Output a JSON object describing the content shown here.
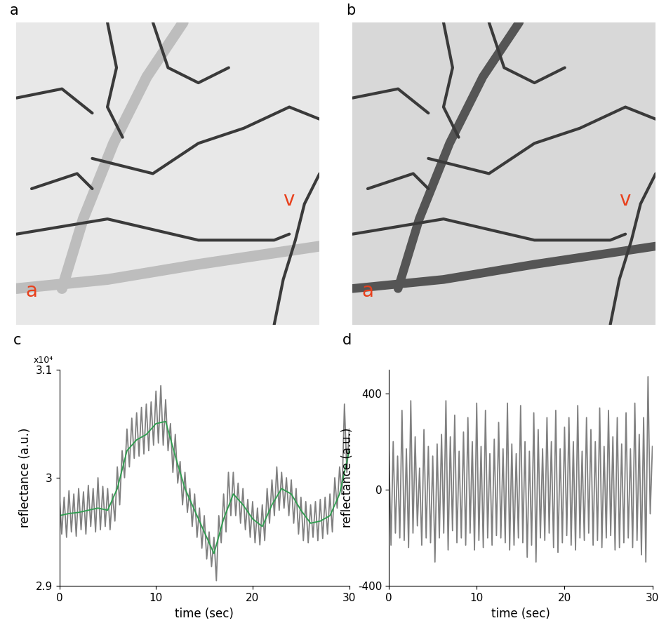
{
  "chart_data": [
    {
      "type": "image",
      "title": "a",
      "labels": [
        "a",
        "v"
      ],
      "color": "#e8e8e8"
    },
    {
      "type": "image",
      "title": "b",
      "labels": [
        "a",
        "v"
      ],
      "color": "#d8d8d8"
    },
    {
      "type": "line",
      "title": "c",
      "annotation": "x10⁴",
      "x_label": "time (sec)",
      "y_label": "reflectance (a.u.)",
      "xlim": [
        0,
        30
      ],
      "xticks": [
        0,
        10,
        20,
        30
      ],
      "ylim": [
        2.9,
        3.1
      ],
      "yticks": [
        2.9,
        3,
        3.1
      ],
      "series": [
        {
          "color": "#808080",
          "x": [
            0,
            0.25,
            0.5,
            0.75,
            1,
            1.25,
            1.5,
            1.75,
            2,
            2.25,
            2.5,
            2.75,
            3,
            3.25,
            3.5,
            3.75,
            4,
            4.25,
            4.5,
            4.75,
            5,
            5.25,
            5.5,
            5.75,
            6,
            6.25,
            6.5,
            6.75,
            7,
            7.25,
            7.5,
            7.75,
            8,
            8.25,
            8.5,
            8.75,
            9,
            9.25,
            9.5,
            9.75,
            10,
            10.25,
            10.5,
            10.75,
            11,
            11.25,
            11.5,
            11.75,
            12,
            12.25,
            12.5,
            12.75,
            13,
            13.25,
            13.5,
            13.75,
            14,
            14.25,
            14.5,
            14.75,
            15,
            15.25,
            15.5,
            15.75,
            16,
            16.25,
            16.5,
            16.75,
            17,
            17.25,
            17.5,
            17.75,
            18,
            18.25,
            18.5,
            18.75,
            19,
            19.25,
            19.5,
            19.75,
            20,
            20.25,
            20.5,
            20.75,
            21,
            21.25,
            21.5,
            21.75,
            22,
            22.25,
            22.5,
            22.75,
            23,
            23.25,
            23.5,
            23.75,
            24,
            24.25,
            24.5,
            24.75,
            25,
            25.25,
            25.5,
            25.75,
            26,
            26.25,
            26.5,
            26.75,
            27,
            27.25,
            27.5,
            27.75,
            28,
            28.25,
            28.5,
            28.75,
            29,
            29.25,
            29.5,
            29.75,
            30
          ],
          "values": [
            2.985,
            2.948,
            2.982,
            2.945,
            2.988,
            2.95,
            2.985,
            2.946,
            2.99,
            2.952,
            2.987,
            2.948,
            2.993,
            2.955,
            2.99,
            2.95,
            3.0,
            2.952,
            2.992,
            2.955,
            2.99,
            2.952,
            2.985,
            2.96,
            3.01,
            2.975,
            3.025,
            3.0,
            3.045,
            3.01,
            3.055,
            3.018,
            3.06,
            3.02,
            3.065,
            3.022,
            3.068,
            3.025,
            3.07,
            3.03,
            3.08,
            3.032,
            3.085,
            3.03,
            3.072,
            3.025,
            3.05,
            3.005,
            3.04,
            2.995,
            3.015,
            2.975,
            3.005,
            2.968,
            2.99,
            2.955,
            2.985,
            2.945,
            2.972,
            2.935,
            2.965,
            2.925,
            2.95,
            2.918,
            2.945,
            2.905,
            2.965,
            2.94,
            2.985,
            2.95,
            3.005,
            2.965,
            3.005,
            2.965,
            2.995,
            2.958,
            2.99,
            2.952,
            2.98,
            2.945,
            2.978,
            2.94,
            2.972,
            2.938,
            2.975,
            2.942,
            2.99,
            2.958,
            2.998,
            2.965,
            3.01,
            2.97,
            3.005,
            2.972,
            3.0,
            2.965,
            2.998,
            2.958,
            2.99,
            2.948,
            2.982,
            2.942,
            2.978,
            2.94,
            2.975,
            2.945,
            2.978,
            2.942,
            2.98,
            2.944,
            2.982,
            2.948,
            2.985,
            2.95,
            3.0,
            2.972,
            3.01,
            2.985,
            3.068,
            3.005,
            3.045
          ]
        },
        {
          "color": "#2e9e4f",
          "x": [
            0,
            1,
            2,
            3,
            4,
            5,
            6,
            7,
            8,
            9,
            10,
            11,
            12,
            13,
            14,
            15,
            16,
            17,
            18,
            19,
            20,
            21,
            22,
            23,
            24,
            25,
            26,
            27,
            28,
            29,
            30
          ],
          "values": [
            2.965,
            2.967,
            2.968,
            2.97,
            2.972,
            2.97,
            2.99,
            3.025,
            3.035,
            3.04,
            3.05,
            3.052,
            3.02,
            2.99,
            2.97,
            2.95,
            2.93,
            2.962,
            2.985,
            2.975,
            2.962,
            2.955,
            2.975,
            2.99,
            2.985,
            2.97,
            2.958,
            2.96,
            2.965,
            2.985,
            3.025
          ]
        }
      ]
    },
    {
      "type": "line",
      "title": "d",
      "x_label": "time (sec)",
      "y_label": "reflectance (a.u.)",
      "xlim": [
        0,
        30
      ],
      "xticks": [
        0,
        10,
        20,
        30
      ],
      "ylim": [
        -400,
        500
      ],
      "yticks": [
        -400,
        0,
        400
      ],
      "series": [
        {
          "color": "#808080",
          "x": [
            0,
            0.25,
            0.5,
            0.75,
            1,
            1.25,
            1.5,
            1.75,
            2,
            2.25,
            2.5,
            2.75,
            3,
            3.25,
            3.5,
            3.75,
            4,
            4.25,
            4.5,
            4.75,
            5,
            5.25,
            5.5,
            5.75,
            6,
            6.25,
            6.5,
            6.75,
            7,
            7.25,
            7.5,
            7.75,
            8,
            8.25,
            8.5,
            8.75,
            9,
            9.25,
            9.5,
            9.75,
            10,
            10.25,
            10.5,
            10.75,
            11,
            11.25,
            11.5,
            11.75,
            12,
            12.25,
            12.5,
            12.75,
            13,
            13.25,
            13.5,
            13.75,
            14,
            14.25,
            14.5,
            14.75,
            15,
            15.25,
            15.5,
            15.75,
            16,
            16.25,
            16.5,
            16.75,
            17,
            17.25,
            17.5,
            17.75,
            18,
            18.25,
            18.5,
            18.75,
            19,
            19.25,
            19.5,
            19.75,
            20,
            20.25,
            20.5,
            20.75,
            21,
            21.25,
            21.5,
            21.75,
            22,
            22.25,
            22.5,
            22.75,
            23,
            23.25,
            23.5,
            23.75,
            24,
            24.25,
            24.5,
            24.75,
            25,
            25.25,
            25.5,
            25.75,
            26,
            26.25,
            26.5,
            26.75,
            27,
            27.25,
            27.5,
            27.75,
            28,
            28.25,
            28.5,
            28.75,
            29,
            29.25,
            29.5,
            29.75,
            30
          ],
          "values": [
            180,
            -230,
            200,
            -180,
            140,
            -200,
            330,
            -210,
            170,
            -240,
            370,
            -180,
            220,
            -150,
            90,
            -230,
            250,
            -200,
            180,
            -220,
            140,
            -300,
            190,
            -200,
            230,
            -180,
            370,
            -250,
            220,
            -170,
            310,
            -220,
            160,
            -200,
            240,
            -230,
            300,
            -180,
            200,
            -250,
            360,
            -210,
            180,
            -240,
            330,
            -200,
            150,
            -230,
            210,
            -190,
            280,
            -200,
            170,
            -220,
            360,
            -250,
            190,
            -230,
            150,
            -200,
            350,
            -220,
            200,
            -280,
            160,
            -230,
            320,
            -300,
            250,
            -200,
            170,
            -210,
            300,
            -180,
            200,
            -240,
            330,
            -260,
            170,
            -220,
            260,
            -190,
            300,
            -230,
            200,
            -250,
            350,
            -200,
            160,
            -210,
            300,
            -180,
            250,
            -230,
            200,
            -210,
            340,
            -240,
            180,
            -200,
            330,
            -190,
            220,
            -250,
            300,
            -240,
            190,
            -220,
            320,
            -200,
            170,
            -240,
            360,
            -210,
            230,
            -270,
            300,
            -300,
            470,
            -100,
            180
          ]
        }
      ]
    }
  ]
}
